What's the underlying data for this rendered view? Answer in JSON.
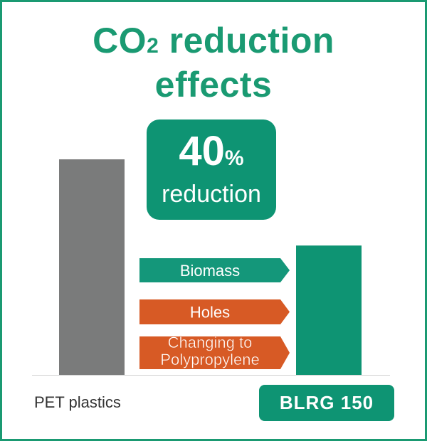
{
  "title": {
    "prefix": "CO",
    "subscript": "2",
    "rest": " reduction",
    "line2": "effects"
  },
  "badge": {
    "value": "40",
    "unit": "%",
    "word": "reduction"
  },
  "chart_data": {
    "type": "bar",
    "categories": [
      "PET plastics",
      "BLRG 150"
    ],
    "values": [
      100,
      60
    ],
    "ylim": [
      0,
      100
    ],
    "colors": [
      "#7a7b7b",
      "#0e9473"
    ],
    "annotations": [
      {
        "label": "Biomass",
        "color": "#14977a"
      },
      {
        "label": "Holes",
        "color": "#d75a25"
      },
      {
        "label_lines": [
          "Changing to",
          "Polypropylene"
        ],
        "color": "#d75a25"
      }
    ]
  },
  "colors": {
    "accent": "#1a9a72",
    "grey_bar": "#7a7b7b",
    "orange": "#d75a25"
  }
}
